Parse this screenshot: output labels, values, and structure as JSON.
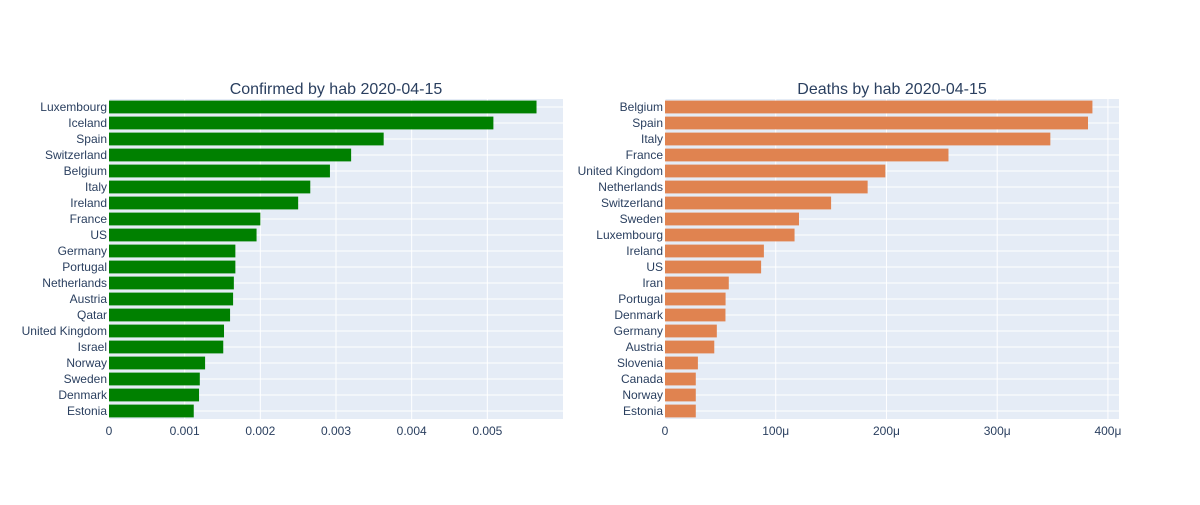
{
  "chart_data": [
    {
      "type": "bar",
      "orientation": "horizontal",
      "title": "Confirmed by hab 2020-04-15",
      "categories": [
        "Luxembourg",
        "Iceland",
        "Spain",
        "Switzerland",
        "Belgium",
        "Italy",
        "Ireland",
        "France",
        "US",
        "Germany",
        "Portugal",
        "Netherlands",
        "Austria",
        "Qatar",
        "United Kingdom",
        "Israel",
        "Norway",
        "Sweden",
        "Denmark",
        "Estonia"
      ],
      "values": [
        0.00565,
        0.00508,
        0.00363,
        0.0032,
        0.00292,
        0.00266,
        0.0025,
        0.002,
        0.00195,
        0.00167,
        0.00167,
        0.00165,
        0.00164,
        0.0016,
        0.00152,
        0.00151,
        0.00127,
        0.0012,
        0.00119,
        0.00112
      ],
      "xlim": [
        0,
        0.006
      ],
      "xticks": [
        0,
        0.001,
        0.002,
        0.003,
        0.004,
        0.005
      ],
      "xtick_labels": [
        "0",
        "0.001",
        "0.002",
        "0.003",
        "0.004",
        "0.005"
      ],
      "color": "#008000",
      "grid": true,
      "xlabel": "",
      "ylabel": ""
    },
    {
      "type": "bar",
      "orientation": "horizontal",
      "title": "Deaths by hab 2020-04-15",
      "categories": [
        "Belgium",
        "Spain",
        "Italy",
        "France",
        "United Kingdom",
        "Netherlands",
        "Switzerland",
        "Sweden",
        "Luxembourg",
        "Ireland",
        "US",
        "Iran",
        "Portugal",
        "Denmark",
        "Germany",
        "Austria",
        "Slovenia",
        "Canada",
        "Norway",
        "Estonia"
      ],
      "values": [
        0.000386,
        0.000382,
        0.000348,
        0.000256,
        0.000199,
        0.000183,
        0.00015,
        0.000121,
        0.000117,
        8.93e-05,
        8.68e-05,
        5.76e-05,
        5.47e-05,
        5.46e-05,
        4.68e-05,
        4.45e-05,
        2.97e-05,
        2.78e-05,
        2.78e-05,
        2.78e-05
      ],
      "xlim": [
        0,
        0.00041
      ],
      "xticks": [
        0,
        0.0001,
        0.0002,
        0.0003,
        0.0004
      ],
      "xtick_labels": [
        "0",
        "100μ",
        "200μ",
        "300μ",
        "400μ"
      ],
      "color": "#e08350",
      "grid": true,
      "xlabel": "",
      "ylabel": ""
    }
  ]
}
